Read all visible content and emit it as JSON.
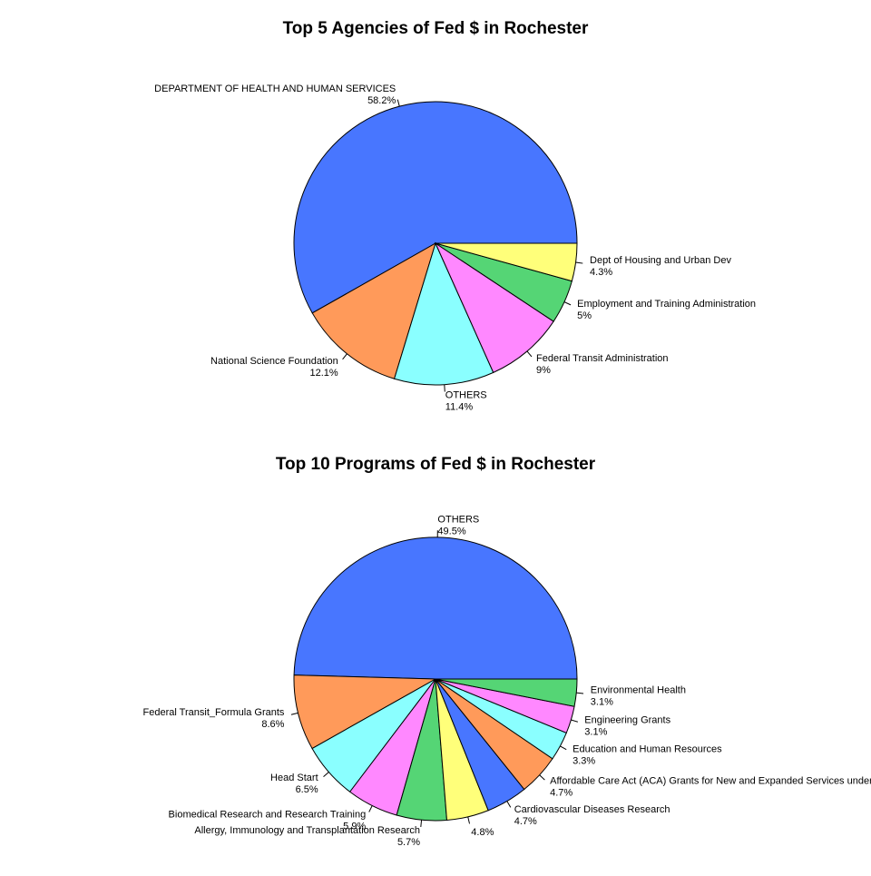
{
  "chart_data": [
    {
      "type": "pie",
      "title": "Top 5 Agencies of Fed $ in Rochester",
      "start": "x-axis-positive",
      "direction": "counterclockwise",
      "slices": [
        {
          "label": "DEPARTMENT OF HEALTH AND HUMAN SERVICES",
          "value": 58.2,
          "percent_label": "58.2%",
          "color": "#4876FF"
        },
        {
          "label": "National Science Foundation",
          "value": 12.1,
          "percent_label": "12.1%",
          "color": "#FF9A5A"
        },
        {
          "label": "OTHERS",
          "value": 11.4,
          "percent_label": "11.4%",
          "color": "#8AFFFF"
        },
        {
          "label": "Federal Transit Administration",
          "value": 9,
          "percent_label": "9%",
          "color": "#FF88FF"
        },
        {
          "label": "Employment and Training Administration",
          "value": 5,
          "percent_label": "5%",
          "color": "#55D575"
        },
        {
          "label": "Dept of Housing and Urban Dev",
          "value": 4.3,
          "percent_label": "4.3%",
          "color": "#FFFF7A"
        }
      ]
    },
    {
      "type": "pie",
      "title": "Top 10 Programs of Fed $ in Rochester",
      "start": "x-axis-positive",
      "direction": "counterclockwise",
      "slices": [
        {
          "label": "OTHERS",
          "value": 49.5,
          "percent_label": "49.5%",
          "color": "#4876FF"
        },
        {
          "label": "Federal Transit_Formula Grants",
          "value": 8.6,
          "percent_label": "8.6%",
          "color": "#FF9A5A"
        },
        {
          "label": "Head Start",
          "value": 6.5,
          "percent_label": "6.5%",
          "color": "#8AFFFF"
        },
        {
          "label": "Biomedical Research and Research Training",
          "value": 5.9,
          "percent_label": "5.9%",
          "color": "#FF88FF"
        },
        {
          "label": "Allergy, Immunology and Transplantation Research",
          "value": 5.7,
          "percent_label": "5.7%",
          "color": "#55D575"
        },
        {
          "label": "",
          "value": 4.8,
          "percent_label": "4.8%",
          "color": "#FFFF7A"
        },
        {
          "label": "Cardiovascular Diseases Research",
          "value": 4.7,
          "percent_label": "4.7%",
          "color": "#4876FF"
        },
        {
          "label": "Affordable Care Act (ACA) Grants for New and Expanded Services under the Health Center Program",
          "value": 4.7,
          "percent_label": "4.7%",
          "color": "#FF9A5A"
        },
        {
          "label": "Education and Human Resources",
          "value": 3.3,
          "percent_label": "3.3%",
          "color": "#8AFFFF"
        },
        {
          "label": "Engineering Grants",
          "value": 3.1,
          "percent_label": "3.1%",
          "color": "#FF88FF"
        },
        {
          "label": "Environmental Health",
          "value": 3.1,
          "percent_label": "3.1%",
          "color": "#55D575"
        }
      ]
    }
  ]
}
